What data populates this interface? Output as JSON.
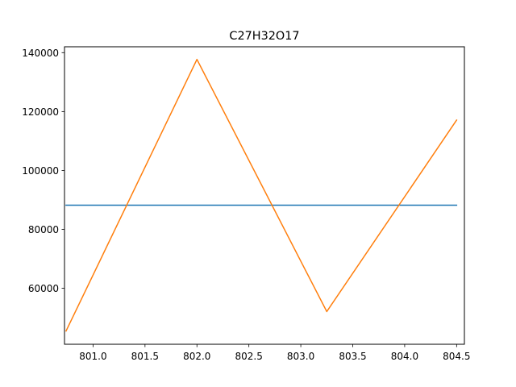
{
  "chart_data": {
    "type": "line",
    "title": "C27H32O17",
    "xlabel": "",
    "ylabel": "",
    "xlim": [
      800.725,
      804.575
    ],
    "ylim": [
      41000,
      142000
    ],
    "x_ticks": [
      801.0,
      801.5,
      802.0,
      802.5,
      803.0,
      803.5,
      804.0,
      804.5
    ],
    "x_tick_labels": [
      "801.0",
      "801.5",
      "802.0",
      "802.5",
      "803.0",
      "803.5",
      "804.0",
      "804.5"
    ],
    "y_ticks": [
      60000,
      80000,
      100000,
      120000,
      140000
    ],
    "y_tick_labels": [
      "60000",
      "80000",
      "100000",
      "120000",
      "140000"
    ],
    "grid": false,
    "series": [
      {
        "color": "#1f77b4",
        "x": [
          800.74,
          804.5
        ],
        "y": [
          88200,
          88200
        ]
      },
      {
        "color": "#ff7f0e",
        "x": [
          800.74,
          802.0,
          803.25,
          804.5
        ],
        "y": [
          45500,
          137700,
          52100,
          117100
        ]
      }
    ]
  }
}
